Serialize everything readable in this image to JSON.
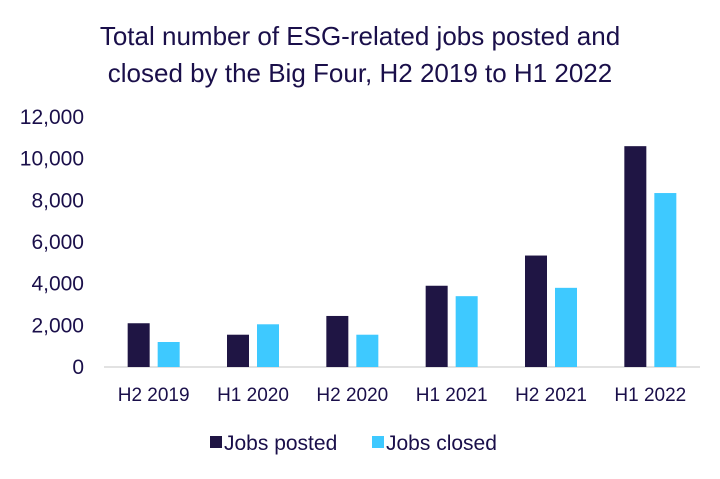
{
  "chart_data": {
    "type": "bar",
    "title": "Total number of ESG-related jobs posted and closed by the Big Four, H2 2019 to H1 2022",
    "title_lines": [
      "Total number of ESG-related jobs posted and",
      "closed by the Big Four, H2 2019 to H1 2022"
    ],
    "categories": [
      "H2 2019",
      "H1 2020",
      "H2 2020",
      "H1 2021",
      "H2 2021",
      "H1 2022"
    ],
    "series": [
      {
        "name": "Jobs posted",
        "color": "#1f1544",
        "values": [
          2100,
          1550,
          2450,
          3900,
          5350,
          10600
        ]
      },
      {
        "name": "Jobs closed",
        "color": "#3ec9ff",
        "values": [
          1200,
          2050,
          1550,
          3400,
          3800,
          8350
        ]
      }
    ],
    "ylim": [
      0,
      12000
    ],
    "yticks": [
      "0",
      "2,000",
      "4,000",
      "6,000",
      "8,000",
      "10,000",
      "12,000"
    ],
    "xlabel": "",
    "ylabel": "",
    "grid": false,
    "legend_position": "bottom"
  }
}
